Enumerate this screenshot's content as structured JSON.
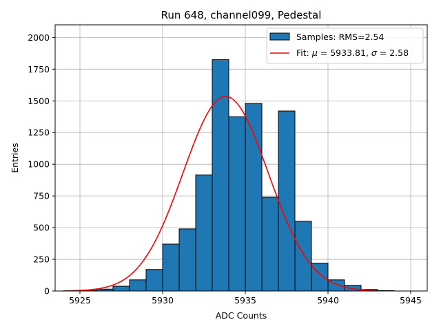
{
  "chart_data": {
    "type": "bar",
    "title": "Run 648, channel099, Pedestal",
    "xlabel": "ADC Counts",
    "ylabel": "Entries",
    "xlim": [
      5923.5,
      5946.0
    ],
    "ylim": [
      0,
      2100
    ],
    "xticks": [
      5925,
      5930,
      5935,
      5940,
      5945
    ],
    "yticks": [
      0,
      250,
      500,
      750,
      1000,
      1250,
      1500,
      1750,
      2000
    ],
    "grid": true,
    "legend_position": "top-right",
    "bar_color": "#1f77b4",
    "fit_color": "#ff0000",
    "bins": [
      {
        "left": 5925,
        "right": 5926,
        "count": 5
      },
      {
        "left": 5926,
        "right": 5927,
        "count": 15
      },
      {
        "left": 5927,
        "right": 5928,
        "count": 38
      },
      {
        "left": 5928,
        "right": 5929,
        "count": 88
      },
      {
        "left": 5929,
        "right": 5930,
        "count": 170
      },
      {
        "left": 5930,
        "right": 5931,
        "count": 370
      },
      {
        "left": 5931,
        "right": 5932,
        "count": 490
      },
      {
        "left": 5932,
        "right": 5933,
        "count": 915
      },
      {
        "left": 5933,
        "right": 5934,
        "count": 1825
      },
      {
        "left": 5934,
        "right": 5935,
        "count": 1375
      },
      {
        "left": 5935,
        "right": 5936,
        "count": 1480
      },
      {
        "left": 5936,
        "right": 5937,
        "count": 740
      },
      {
        "left": 5937,
        "right": 5938,
        "count": 1420
      },
      {
        "left": 5938,
        "right": 5939,
        "count": 550
      },
      {
        "left": 5939,
        "right": 5940,
        "count": 220
      },
      {
        "left": 5940,
        "right": 5941,
        "count": 88
      },
      {
        "left": 5941,
        "right": 5942,
        "count": 45
      },
      {
        "left": 5942,
        "right": 5943,
        "count": 12
      },
      {
        "left": 5943,
        "right": 5944,
        "count": 3
      }
    ],
    "fit": {
      "mu": 5933.81,
      "sigma": 2.58,
      "amplitude": 1535,
      "x_range": [
        5924,
        5943
      ]
    },
    "legend": {
      "bars_label": "Samples: RMS=2.54",
      "fit_label_prefix": "Fit: ",
      "mu_symbol": "μ",
      "mu_text": " = 5933.81, ",
      "sigma_symbol": "σ",
      "sigma_text": " = 2.58"
    }
  }
}
